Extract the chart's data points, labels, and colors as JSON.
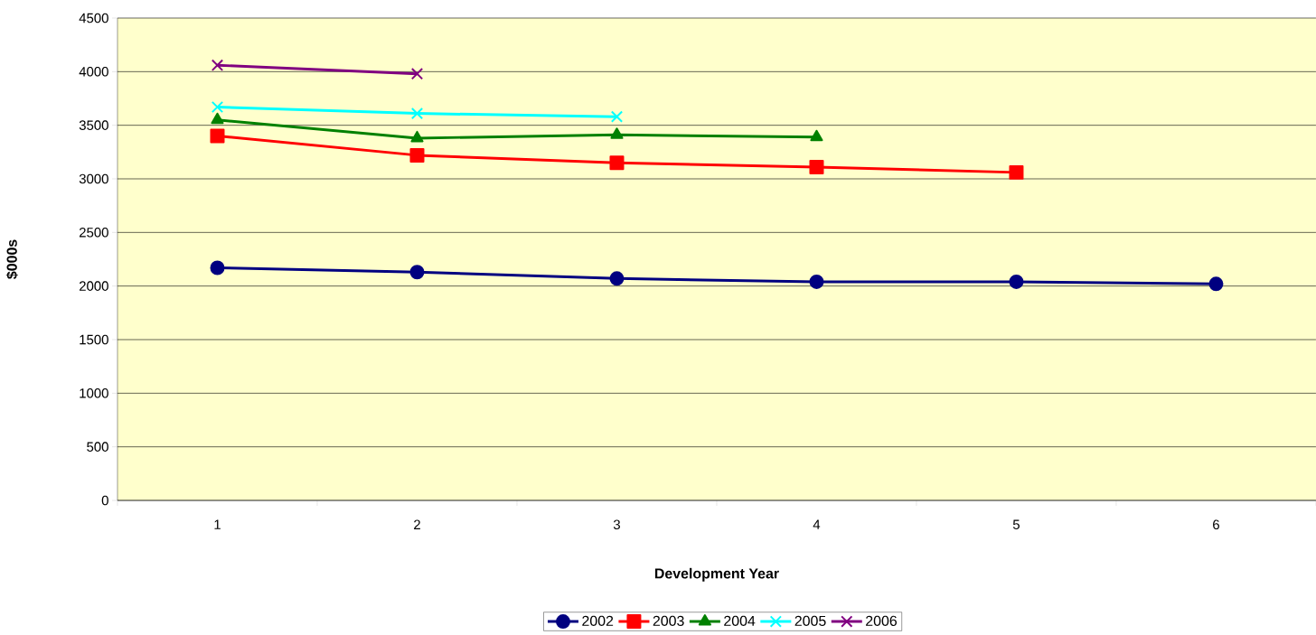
{
  "chart_data": {
    "type": "line",
    "xlabel": "Development Year",
    "ylabel": "$000s",
    "categories": [
      "1",
      "2",
      "3",
      "4",
      "5",
      "6"
    ],
    "series": [
      {
        "name": "2002",
        "color": "#000080",
        "marker": "circle",
        "values": [
          2170,
          2130,
          2070,
          2040,
          2040,
          2020
        ]
      },
      {
        "name": "2003",
        "color": "#ff0000",
        "marker": "square",
        "values": [
          3400,
          3220,
          3150,
          3110,
          3060,
          null
        ]
      },
      {
        "name": "2004",
        "color": "#008000",
        "marker": "triangle",
        "values": [
          3550,
          3380,
          3410,
          3390,
          null,
          null
        ]
      },
      {
        "name": "2005",
        "color": "#00ffff",
        "marker": "cross",
        "values": [
          3670,
          3610,
          3580,
          null,
          null,
          null
        ]
      },
      {
        "name": "2006",
        "color": "#800080",
        "marker": "cross",
        "values": [
          4060,
          3980,
          null,
          null,
          null,
          null
        ]
      }
    ],
    "ylim": [
      0,
      4500
    ],
    "yticks": [
      0,
      500,
      1000,
      1500,
      2000,
      2500,
      3000,
      3500,
      4000,
      4500
    ],
    "grid": "y",
    "legend": "bottom"
  }
}
